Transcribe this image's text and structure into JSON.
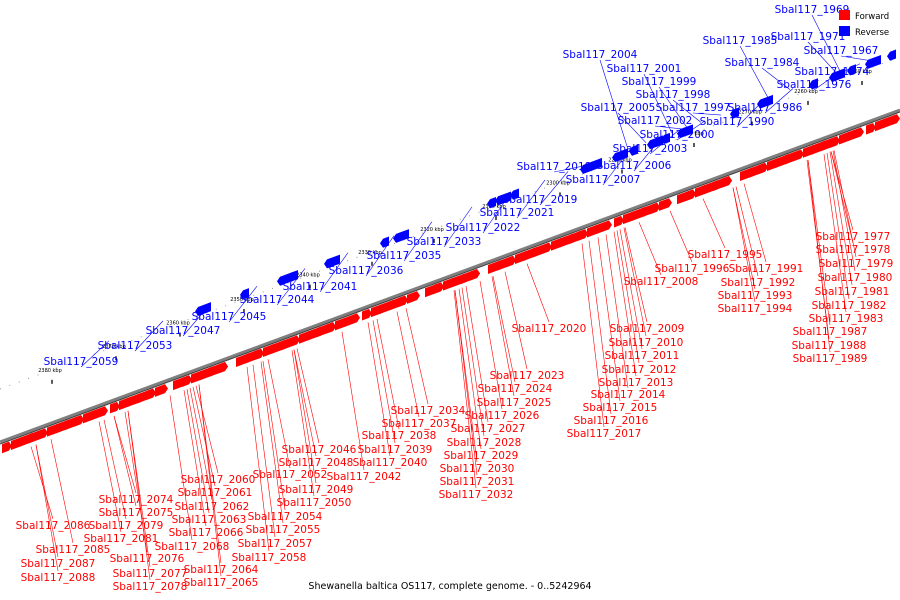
{
  "caption": "Shewanella baltica OS117, complete genome. - 0..5242964",
  "legend": [
    {
      "label": "Forward",
      "color": "#ff0000"
    },
    {
      "label": "Reverse",
      "color": "#0000ff"
    }
  ],
  "colors": {
    "forward": "#ff0000",
    "reverse": "#0000ff",
    "backbone": "#7f7f7f"
  },
  "ticks": [
    "2250 kbp",
    "2260 kbp",
    "2270 kbp",
    "2280 kbp",
    "2290 kbp",
    "2300 kbp",
    "2310 kbp",
    "2320 kbp",
    "2330 kbp",
    "2340 kbp",
    "2350 kbp",
    "2360 kbp",
    "2370 kbp",
    "2380 kbp"
  ],
  "reverse_genes": [
    "Sbal117_1969",
    "Sbal117_1971",
    "Sbal117_1967",
    "Sbal117_1974",
    "Sbal117_1976",
    "Sbal117_1985",
    "Sbal117_1984",
    "Sbal117_1986",
    "Sbal117_1990",
    "Sbal117_2004",
    "Sbal117_2001",
    "Sbal117_1999",
    "Sbal117_1998",
    "Sbal117_1997",
    "Sbal117_2005",
    "Sbal117_2002",
    "Sbal117_2000",
    "Sbal117_2003",
    "Sbal117_2006",
    "Sbal117_2007",
    "Sbal117_2018",
    "Sbal117_2019",
    "Sbal117_2021",
    "Sbal117_2022",
    "Sbal117_2033",
    "Sbal117_2035",
    "Sbal117_2036",
    "Sbal117_2041",
    "Sbal117_2044",
    "Sbal117_2045",
    "Sbal117_2047",
    "Sbal117_2053",
    "Sbal117_2059"
  ],
  "forward_genes": [
    "Sbal117_1977",
    "Sbal117_1978",
    "Sbal117_1979",
    "Sbal117_1980",
    "Sbal117_1981",
    "Sbal117_1982",
    "Sbal117_1983",
    "Sbal117_1987",
    "Sbal117_1988",
    "Sbal117_1989",
    "Sbal117_1995",
    "Sbal117_1996",
    "Sbal117_1991",
    "Sbal117_1992",
    "Sbal117_1993",
    "Sbal117_1994",
    "Sbal117_2008",
    "Sbal117_2009",
    "Sbal117_2010",
    "Sbal117_2011",
    "Sbal117_2012",
    "Sbal117_2013",
    "Sbal117_2014",
    "Sbal117_2015",
    "Sbal117_2016",
    "Sbal117_2017",
    "Sbal117_2020",
    "Sbal117_2023",
    "Sbal117_2024",
    "Sbal117_2025",
    "Sbal117_2026",
    "Sbal117_2027",
    "Sbal117_2028",
    "Sbal117_2029",
    "Sbal117_2030",
    "Sbal117_2031",
    "Sbal117_2032",
    "Sbal117_2034",
    "Sbal117_2037",
    "Sbal117_2038",
    "Sbal117_2039",
    "Sbal117_2040",
    "Sbal117_2042",
    "Sbal117_2046",
    "Sbal117_2048",
    "Sbal117_2049",
    "Sbal117_2050",
    "Sbal117_2052",
    "Sbal117_2054",
    "Sbal117_2055",
    "Sbal117_2057",
    "Sbal117_2058",
    "Sbal117_2060",
    "Sbal117_2061",
    "Sbal117_2062",
    "Sbal117_2063",
    "Sbal117_2066",
    "Sbal117_2068",
    "Sbal117_2064",
    "Sbal117_2065",
    "Sbal117_2074",
    "Sbal117_2075",
    "Sbal117_2079",
    "Sbal117_2081",
    "Sbal117_2076",
    "Sbal117_2077",
    "Sbal117_2078",
    "Sbal117_2086",
    "Sbal117_2085",
    "Sbal117_2087",
    "Sbal117_2088"
  ]
}
